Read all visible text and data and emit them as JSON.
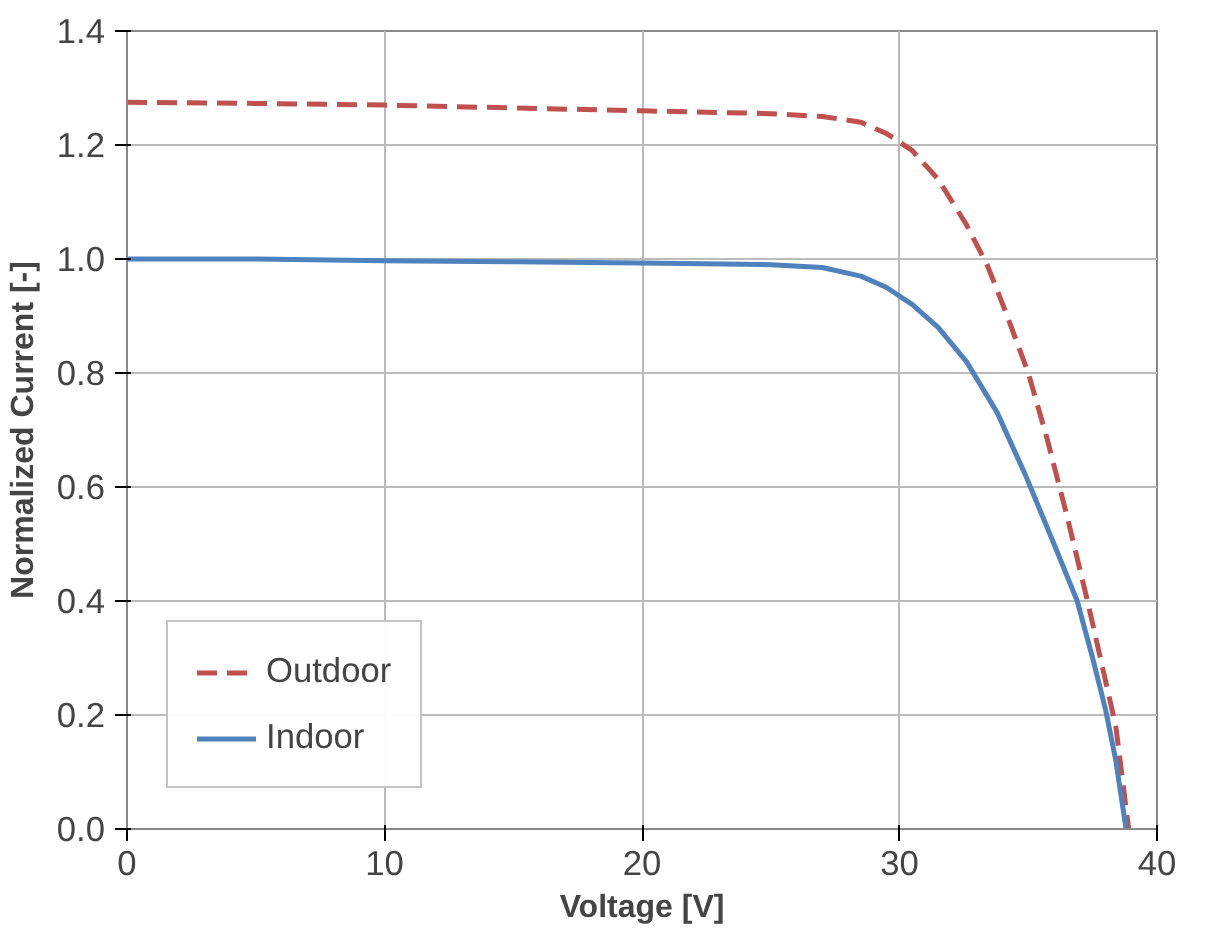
{
  "chart_data": {
    "type": "line",
    "xlabel": "Voltage [V]",
    "ylabel": "Normalized Current [-]",
    "xlim": [
      0,
      40
    ],
    "xticks": [
      0,
      10,
      20,
      30,
      40
    ],
    "ylim": [
      0,
      1.4
    ],
    "yticks": [
      {
        "value": 0,
        "label": "0.0"
      },
      0.2,
      0.4,
      0.6,
      0.8,
      {
        "value": 1,
        "label": "1.0"
      },
      1.2,
      1.4
    ],
    "grid": true,
    "legend": "bottom left",
    "marker": "none",
    "series": [
      {
        "name": "Outdoor",
        "color": "#c0504d",
        "line_style": "dashed",
        "x": [
          0,
          5,
          10,
          15,
          20,
          25,
          27,
          28.5,
          29.5,
          30.5,
          31.5,
          32.6,
          33.4,
          34.1,
          35,
          35.7,
          36.5,
          37.3,
          38,
          38.4,
          38.9
        ],
        "values": [
          1.275,
          1.273,
          1.27,
          1.265,
          1.26,
          1.255,
          1.25,
          1.24,
          1.22,
          1.19,
          1.14,
          1.06,
          0.99,
          0.91,
          0.8,
          0.69,
          0.55,
          0.4,
          0.26,
          0.18,
          0
        ]
      },
      {
        "name": "Indoor",
        "color": "#4f81bd",
        "line_style": "solid",
        "x": [
          0,
          5,
          10,
          15,
          20,
          25,
          27,
          28.5,
          29.5,
          30.5,
          31.5,
          32.6,
          33.8,
          34.9,
          36,
          36.9,
          37.5,
          38,
          38.4,
          38.8
        ],
        "values": [
          1.0,
          1.0,
          0.997,
          0.995,
          0.993,
          0.99,
          0.985,
          0.97,
          0.95,
          0.92,
          0.88,
          0.82,
          0.73,
          0.62,
          0.5,
          0.4,
          0.3,
          0.21,
          0.12,
          0
        ]
      }
    ]
  }
}
